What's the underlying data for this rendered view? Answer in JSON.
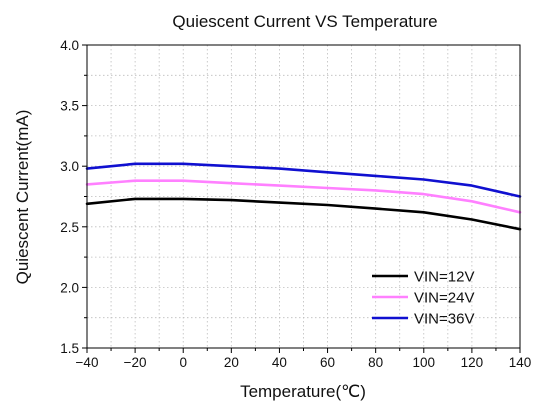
{
  "chart_data": {
    "type": "line",
    "title": "Quiescent Current VS Temperature",
    "xlabel": "Temperature(℃)",
    "ylabel": "Quiescent Current(mA)",
    "xlim": [
      -40,
      140
    ],
    "ylim": [
      1.5,
      4.0
    ],
    "x_ticks": [
      -40,
      -20,
      0,
      20,
      40,
      60,
      80,
      100,
      120,
      140
    ],
    "x_tick_labels": [
      "−40",
      "−20",
      "0",
      "20",
      "40",
      "60",
      "80",
      "100",
      "120",
      "140"
    ],
    "y_ticks": [
      1.5,
      2.0,
      2.5,
      3.0,
      3.5,
      4.0
    ],
    "y_tick_labels": [
      "1.5",
      "2.0",
      "2.5",
      "3.0",
      "3.5",
      "4.0"
    ],
    "grid": true,
    "legend_position": "bottom-right",
    "x": [
      -40,
      -20,
      0,
      20,
      40,
      60,
      80,
      100,
      120,
      140
    ],
    "series": [
      {
        "name": "VIN=12V",
        "color": "#000000",
        "values": [
          2.69,
          2.73,
          2.73,
          2.72,
          2.7,
          2.68,
          2.65,
          2.62,
          2.56,
          2.48
        ]
      },
      {
        "name": "VIN=24V",
        "color": "#ff80ff",
        "values": [
          2.85,
          2.88,
          2.88,
          2.86,
          2.84,
          2.82,
          2.8,
          2.77,
          2.71,
          2.62
        ]
      },
      {
        "name": "VIN=36V",
        "color": "#1010d0",
        "values": [
          2.98,
          3.02,
          3.02,
          3.0,
          2.98,
          2.95,
          2.92,
          2.89,
          2.84,
          2.75
        ]
      }
    ]
  }
}
